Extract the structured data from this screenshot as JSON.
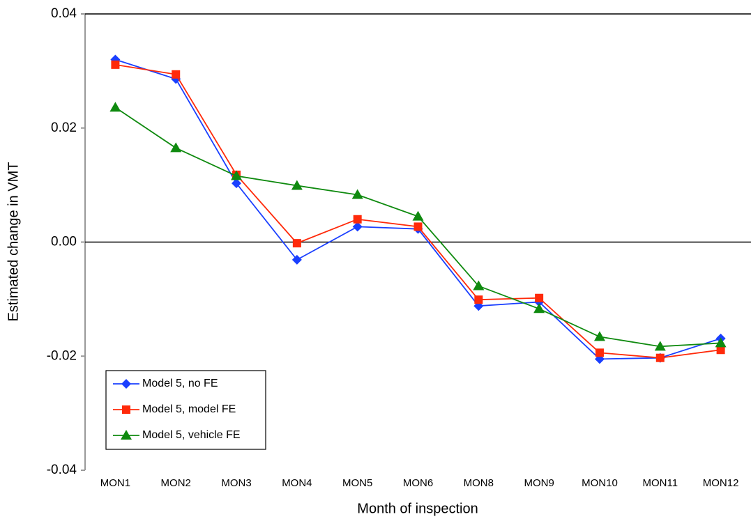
{
  "chart_data": {
    "type": "line",
    "x_label": "Month of inspection",
    "y_label": "Estimated change in VMT",
    "categories": [
      "MON1",
      "MON2",
      "MON3",
      "MON4",
      "MON5",
      "MON6",
      "MON8",
      "MON9",
      "MON10",
      "MON11",
      "MON12"
    ],
    "ylim": [
      -0.04,
      0.04
    ],
    "yticks": [
      -0.04,
      -0.02,
      {
        "value": 0,
        "label": "0.00"
      },
      0.02,
      0.04
    ],
    "legend": "bottom-left",
    "series": [
      {
        "name": "Model 5, no FE",
        "color": "#1a3fff",
        "marker": "diamond",
        "values": [
          0.032,
          0.0286,
          0.0103,
          -0.0031,
          0.0027,
          0.0023,
          -0.0112,
          -0.0105,
          -0.0205,
          -0.0203,
          -0.0169
        ]
      },
      {
        "name": "Model 5, model FE",
        "color": "#ff2a0a",
        "marker": "square",
        "values": [
          0.0311,
          0.0294,
          0.0118,
          -0.0002,
          0.004,
          0.0027,
          -0.0101,
          -0.0098,
          -0.0194,
          -0.0203,
          -0.0189
        ]
      },
      {
        "name": "Model 5, vehicle FE",
        "color": "#0f8a0f",
        "marker": "triangle",
        "values": [
          0.0236,
          0.0165,
          0.0116,
          0.0099,
          0.0083,
          0.0045,
          -0.0077,
          -0.0117,
          -0.0166,
          -0.0183,
          -0.0177
        ]
      }
    ]
  }
}
